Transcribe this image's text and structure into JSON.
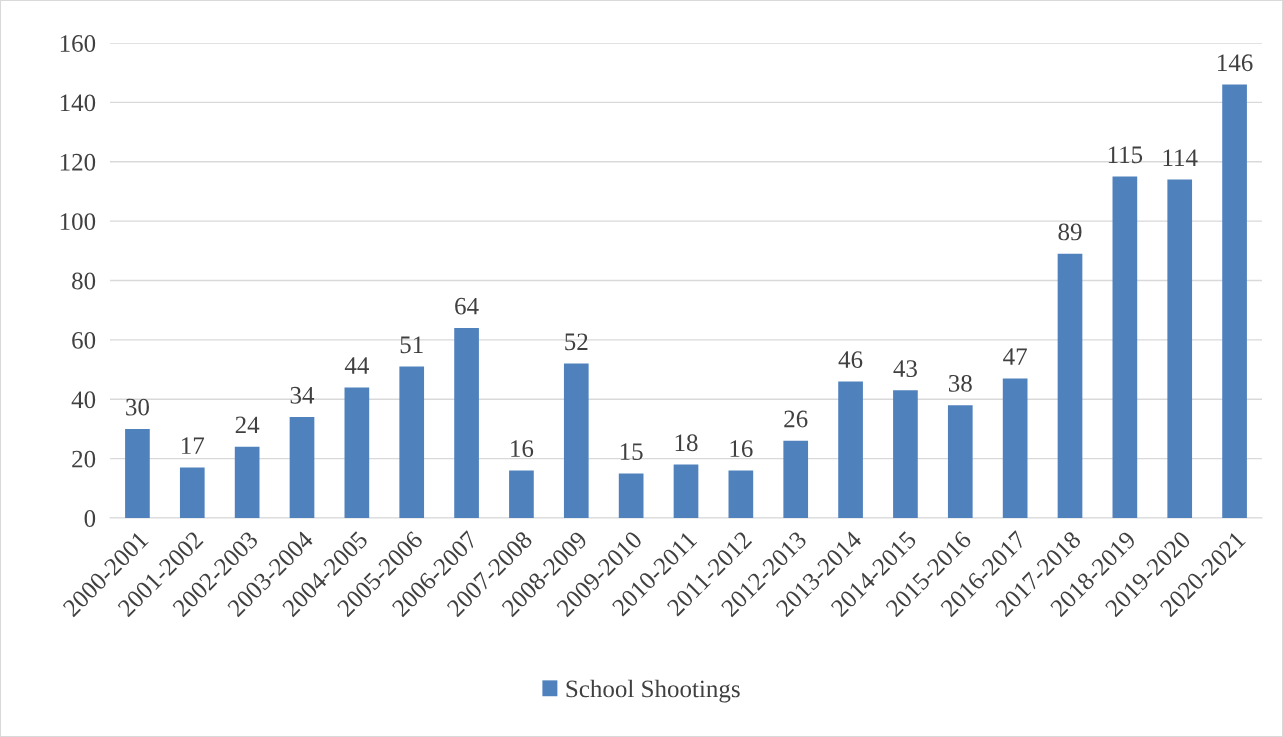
{
  "chart_data": {
    "type": "bar",
    "categories": [
      "2000-2001",
      "2001-2002",
      "2002-2003",
      "2003-2004",
      "2004-2005",
      "2005-2006",
      "2006-2007",
      "2007-2008",
      "2008-2009",
      "2009-2010",
      "2010-2011",
      "2011-2012",
      "2012-2013",
      "2013-2014",
      "2014-2015",
      "2015-2016",
      "2016-2017",
      "2017-2018",
      "2018-2019",
      "2019-2020",
      "2020-2021"
    ],
    "series": [
      {
        "name": "School Shootings",
        "color": "#4f81bd",
        "values": [
          30,
          17,
          24,
          34,
          44,
          51,
          64,
          16,
          52,
          15,
          18,
          16,
          26,
          46,
          43,
          38,
          47,
          89,
          115,
          114,
          146
        ]
      }
    ],
    "ylim": [
      0,
      160
    ],
    "yticks": [
      0,
      20,
      40,
      60,
      80,
      100,
      120,
      140,
      160
    ],
    "grid": "y",
    "legend": "bottom",
    "data_labels": true
  }
}
